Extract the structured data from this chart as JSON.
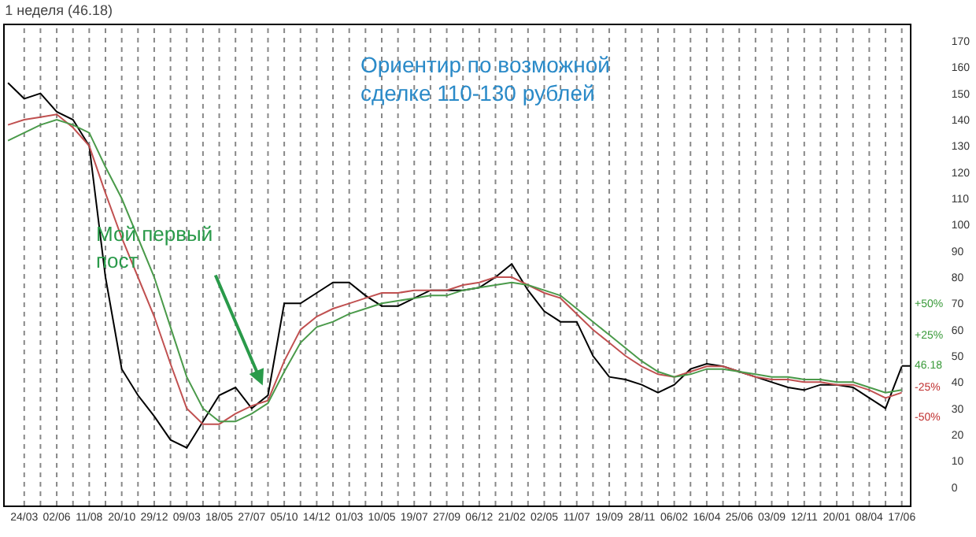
{
  "chart_data": {
    "type": "line",
    "title": "1 неделя (46.18)",
    "categories": [
      null,
      "24/03",
      null,
      "02/06",
      null,
      "11/08",
      null,
      "20/10",
      null,
      "29/12",
      null,
      "09/03",
      null,
      "18/05",
      null,
      "27/07",
      null,
      "05/10",
      null,
      "14/12",
      null,
      "01/03",
      null,
      "10/05",
      null,
      "19/07",
      null,
      "27/09",
      null,
      "06/12",
      null,
      "21/02",
      null,
      "02/05",
      null,
      "11/07",
      null,
      "19/09",
      null,
      "28/11",
      null,
      "06/02",
      null,
      "16/04",
      null,
      "25/06",
      null,
      "03/09",
      null,
      "12/11",
      null,
      "20/01",
      null,
      "08/04",
      null,
      "17/06"
    ],
    "annotations": [
      "Ориентир по возможной\nсделке 110-130 рублей",
      "Мой первый\nпост",
      "+50%",
      "+25%",
      {
        "text": "46.18",
        "x": "17/06",
        "y": 46.18
      },
      "-25%",
      "-50%"
    ],
    "series": [
      {
        "color": "#000000",
        "values": [
          154,
          148,
          150,
          143,
          140,
          130,
          80,
          45,
          35,
          27,
          18,
          15,
          25,
          35,
          38,
          30,
          35,
          70,
          70,
          74,
          78,
          78,
          73,
          69,
          69,
          72,
          75,
          75,
          75,
          76,
          80,
          85,
          75,
          67,
          63,
          63,
          50,
          42,
          41,
          39,
          36,
          39,
          45,
          47,
          46,
          44,
          42,
          40,
          38,
          37,
          39,
          39,
          38,
          34,
          30,
          46
        ]
      },
      {
        "color": "#c05050",
        "values": [
          138,
          140,
          141,
          142,
          137,
          130,
          112,
          95,
          80,
          65,
          47,
          30,
          24,
          24,
          28,
          31,
          33,
          48,
          60,
          65,
          68,
          70,
          72,
          74,
          74,
          75,
          75,
          75,
          77,
          78,
          80,
          80,
          77,
          74,
          72,
          66,
          60,
          55,
          50,
          46,
          43,
          42,
          44,
          46,
          46,
          44,
          42,
          41,
          41,
          40,
          40,
          39,
          39,
          37,
          34,
          36
        ]
      },
      {
        "color": "#4a9a4a",
        "values": [
          132,
          135,
          138,
          140,
          138,
          135,
          122,
          110,
          95,
          80,
          61,
          42,
          30,
          25,
          25,
          28,
          32,
          44,
          55,
          61,
          63,
          66,
          68,
          70,
          71,
          72,
          73,
          73,
          75,
          76,
          77,
          78,
          77,
          75,
          73,
          68,
          63,
          58,
          53,
          48,
          44,
          42,
          43,
          45,
          45,
          44,
          43,
          42,
          42,
          41,
          41,
          40,
          40,
          38,
          36,
          37
        ]
      }
    ],
    "ylim": [
      -7,
      176
    ],
    "yticks": [
      0,
      10,
      20,
      30,
      40,
      50,
      60,
      70,
      80,
      90,
      100,
      110,
      120,
      130,
      140,
      150,
      160,
      170
    ],
    "grid": "x",
    "marker": "none",
    "line_style": "solid"
  }
}
